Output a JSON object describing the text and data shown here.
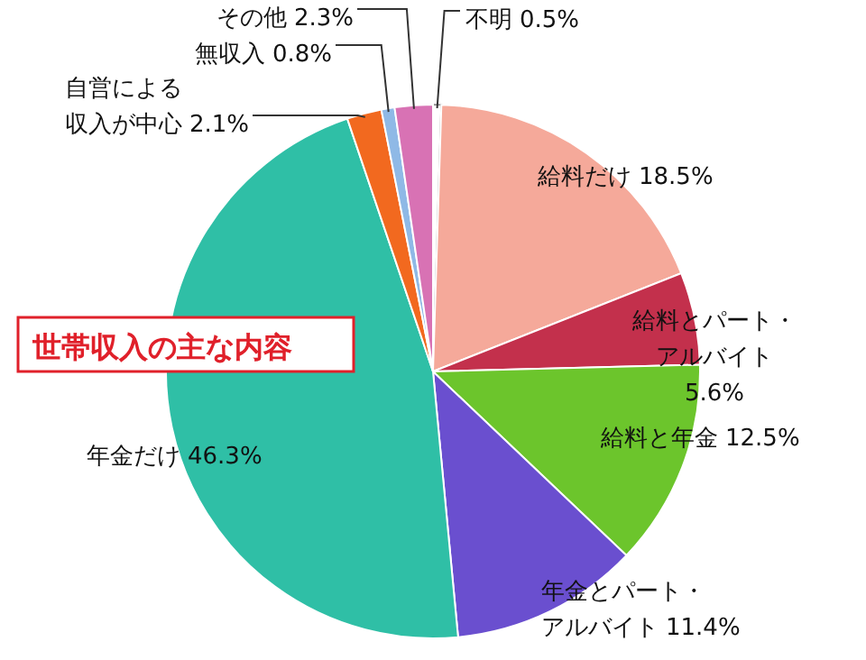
{
  "chart_data": {
    "type": "pie",
    "title": "世帯収入の主な内容",
    "categories": [
      "不明",
      "給料だけ",
      "給料とパート・アルバイト",
      "給料と年金",
      "年金とパート・アルバイト",
      "年金だけ",
      "自営による収入が中心",
      "無収入",
      "その他"
    ],
    "values": [
      0.5,
      18.5,
      5.6,
      12.5,
      11.4,
      46.3,
      2.1,
      0.8,
      2.3
    ],
    "value_labels": [
      "0.5%",
      "18.5%",
      "5.6%",
      "12.5%",
      "11.4%",
      "46.3%",
      "2.1%",
      "0.8%",
      "2.3%"
    ],
    "colors": [
      "#ffffff",
      "#f5a99a",
      "#c3304c",
      "#6cc52c",
      "#6a4fcf",
      "#2fbfa6",
      "#f2691f",
      "#8fb9e6",
      "#d872b4"
    ]
  }
}
